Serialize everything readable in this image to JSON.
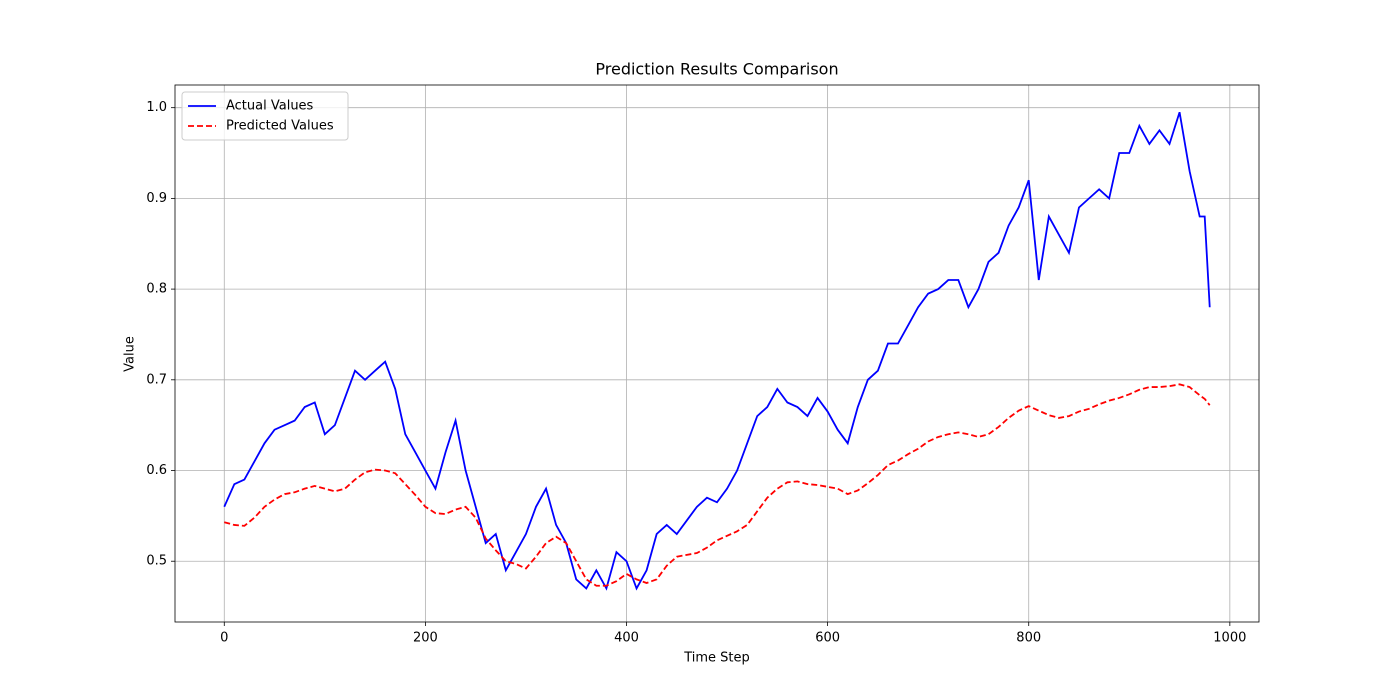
{
  "chart_data": {
    "type": "line",
    "title": "Prediction Results Comparison",
    "x_label": "Time Step",
    "y_label": "Value",
    "x": [
      0,
      10,
      20,
      30,
      40,
      50,
      60,
      70,
      80,
      90,
      100,
      110,
      120,
      130,
      140,
      150,
      160,
      170,
      180,
      190,
      200,
      210,
      220,
      230,
      240,
      250,
      260,
      270,
      280,
      290,
      300,
      310,
      320,
      330,
      340,
      350,
      360,
      370,
      380,
      390,
      400,
      410,
      420,
      430,
      440,
      450,
      460,
      470,
      480,
      490,
      500,
      510,
      520,
      530,
      540,
      550,
      560,
      570,
      580,
      590,
      600,
      610,
      620,
      630,
      640,
      650,
      660,
      670,
      680,
      690,
      700,
      710,
      720,
      730,
      740,
      750,
      760,
      770,
      780,
      790,
      800,
      810,
      820,
      830,
      840,
      850,
      860,
      870,
      880,
      890,
      900,
      910,
      920,
      930,
      940,
      950,
      960,
      970,
      975,
      980
    ],
    "series": [
      {
        "name": "Actual Values",
        "color": "#0000ff",
        "dash": "solid",
        "values": [
          0.56,
          0.585,
          0.59,
          0.61,
          0.63,
          0.645,
          0.65,
          0.655,
          0.67,
          0.675,
          0.64,
          0.65,
          0.68,
          0.71,
          0.7,
          0.71,
          0.72,
          0.69,
          0.64,
          0.62,
          0.6,
          0.58,
          0.62,
          0.655,
          0.6,
          0.56,
          0.52,
          0.53,
          0.49,
          0.51,
          0.53,
          0.56,
          0.58,
          0.54,
          0.52,
          0.48,
          0.47,
          0.49,
          0.47,
          0.51,
          0.5,
          0.47,
          0.49,
          0.53,
          0.54,
          0.53,
          0.545,
          0.56,
          0.57,
          0.565,
          0.58,
          0.6,
          0.63,
          0.66,
          0.67,
          0.69,
          0.675,
          0.67,
          0.66,
          0.68,
          0.665,
          0.645,
          0.63,
          0.67,
          0.7,
          0.71,
          0.74,
          0.74,
          0.76,
          0.78,
          0.795,
          0.8,
          0.81,
          0.81,
          0.78,
          0.8,
          0.83,
          0.84,
          0.87,
          0.89,
          0.92,
          0.81,
          0.88,
          0.86,
          0.84,
          0.89,
          0.9,
          0.91,
          0.9,
          0.95,
          0.95,
          0.98,
          0.96,
          0.975,
          0.96,
          0.995,
          0.93,
          0.88,
          0.88,
          0.78
        ]
      },
      {
        "name": "Predicted Values",
        "color": "#ff0000",
        "dash": "dashed",
        "values": [
          0.543,
          0.54,
          0.539,
          0.548,
          0.56,
          0.568,
          0.574,
          0.576,
          0.58,
          0.583,
          0.58,
          0.577,
          0.58,
          0.59,
          0.598,
          0.601,
          0.6,
          0.597,
          0.585,
          0.573,
          0.56,
          0.553,
          0.552,
          0.557,
          0.56,
          0.548,
          0.525,
          0.512,
          0.5,
          0.497,
          0.492,
          0.505,
          0.52,
          0.527,
          0.52,
          0.5,
          0.48,
          0.473,
          0.473,
          0.478,
          0.486,
          0.48,
          0.476,
          0.48,
          0.495,
          0.505,
          0.507,
          0.509,
          0.515,
          0.523,
          0.528,
          0.533,
          0.54,
          0.555,
          0.57,
          0.58,
          0.587,
          0.588,
          0.585,
          0.584,
          0.582,
          0.58,
          0.574,
          0.578,
          0.586,
          0.595,
          0.606,
          0.611,
          0.618,
          0.624,
          0.632,
          0.637,
          0.64,
          0.642,
          0.64,
          0.637,
          0.64,
          0.648,
          0.658,
          0.666,
          0.671,
          0.666,
          0.661,
          0.658,
          0.66,
          0.665,
          0.668,
          0.673,
          0.677,
          0.68,
          0.684,
          0.689,
          0.692,
          0.692,
          0.693,
          0.695,
          0.692,
          0.683,
          0.679,
          0.672
        ]
      }
    ],
    "xlim": [
      -49,
      1029
    ],
    "ylim": [
      0.433,
      1.025
    ],
    "xticks": [
      0,
      200,
      400,
      600,
      800,
      1000
    ],
    "yticks": [
      0.5,
      0.6,
      0.7,
      0.8,
      0.9,
      {
        "value": 1,
        "label": "1.0"
      }
    ],
    "grid": true,
    "legend": "upper left"
  }
}
